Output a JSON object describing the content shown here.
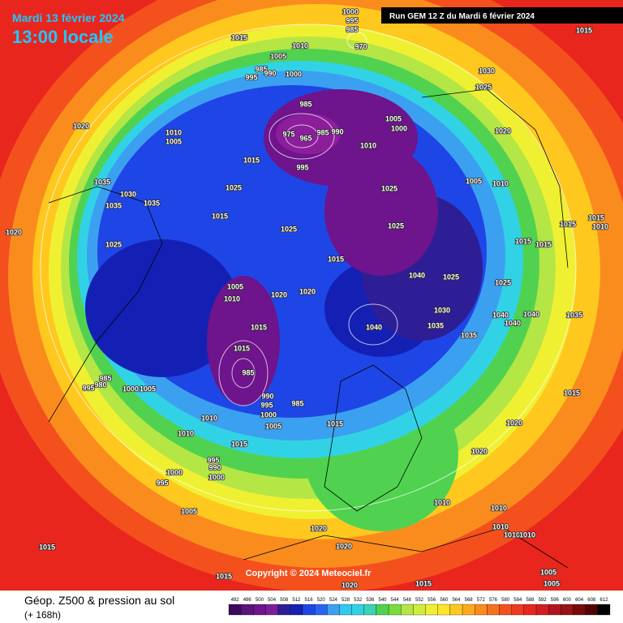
{
  "header": {
    "date": "Mardi 13 février 2024",
    "time": "13:00 locale",
    "run": "Run GEM 12 Z du Mardi 6 février 2024"
  },
  "copyright": "Copyright © 2024 Meteociel.fr",
  "legend": {
    "title": "Géop. Z500 & pression au sol",
    "subtitle": "(+ 168h)",
    "scale": [
      492,
      496,
      500,
      504,
      508,
      512,
      516,
      520,
      524,
      528,
      532,
      536,
      540,
      544,
      548,
      552,
      556,
      560,
      564,
      568,
      572,
      576,
      580,
      584,
      588,
      592,
      596,
      600,
      604,
      608,
      612
    ]
  },
  "isobar_labels": [
    "1000",
    "995",
    "985",
    "970",
    "1015",
    "1010",
    "1005",
    "995",
    "985",
    "990",
    "1000",
    "1030",
    "1025",
    "1015",
    "1020",
    "1010",
    "1005",
    "985",
    "975",
    "965",
    "985",
    "990",
    "1005",
    "1000",
    "1010",
    "1020",
    "1015",
    "995",
    "1025",
    "1025",
    "1005",
    "1010",
    "1035",
    "1030",
    "1035",
    "1035",
    "1020",
    "1015",
    "1025",
    "1025",
    "1015",
    "1015",
    "1010",
    "1025",
    "1015",
    "1015",
    "1015",
    "1040",
    "1025",
    "1025",
    "1005",
    "1010",
    "1020",
    "1020",
    "1030",
    "1040",
    "1040",
    "1035",
    "1040",
    "1035",
    "1040",
    "1035",
    "1015",
    "1015",
    "985",
    "990",
    "995",
    "1000",
    "985",
    "1005",
    "1015",
    "985",
    "980",
    "995",
    "1000",
    "1005",
    "1015",
    "1020",
    "1010",
    "1010",
    "1015",
    "1020",
    "995",
    "990",
    "1000",
    "1000",
    "995",
    "1010",
    "1010",
    "1005",
    "1020",
    "1010",
    "1010",
    "1010",
    "1020",
    "1015",
    "1005",
    "1005",
    "1015",
    "1015",
    "1020"
  ]
}
